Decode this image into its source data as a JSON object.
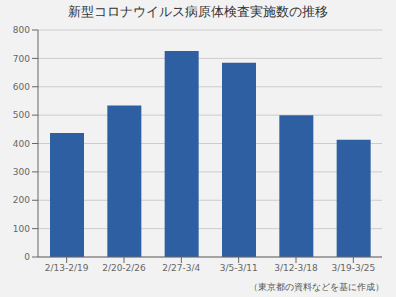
{
  "chart_data": {
    "type": "bar",
    "title": "新型コロナウイルス病原体検査実施数の推移",
    "categories": [
      "2/13-2/19",
      "2/20-2/26",
      "2/27-3/4",
      "3/5-3/11",
      "3/12-3/18",
      "3/19-3/25"
    ],
    "values": [
      437,
      534,
      726,
      685,
      500,
      413
    ],
    "color": "#2E5FA3",
    "ylim": [
      0,
      800
    ],
    "yticks": [
      0,
      100,
      200,
      300,
      400,
      500,
      600,
      700,
      800
    ],
    "grid": true,
    "annotations": [
      "（東京都の資料などを基に作成）"
    ]
  }
}
